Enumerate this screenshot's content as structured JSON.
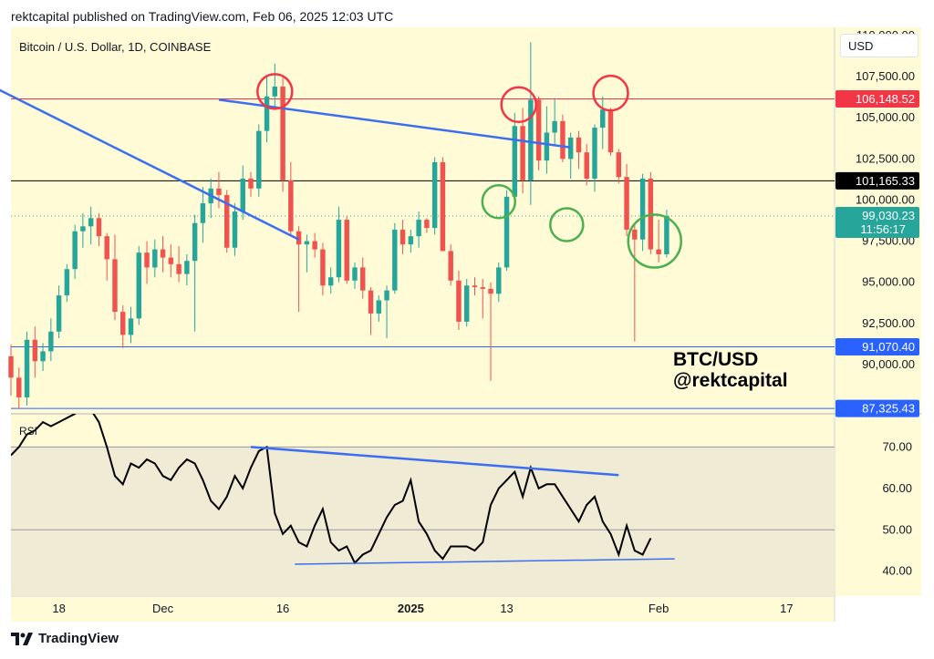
{
  "header": {
    "published_text": "rektcapital published on TradingView.com, Feb 06, 2025 12:03 UTC"
  },
  "footer": {
    "brand_label": "TradingView",
    "logo_icon": "tradingview-logo-icon"
  },
  "toolbar": {
    "currency_label": "USD"
  },
  "chart_data": [
    {
      "type": "candlestick",
      "title": "Bitcoin / U.S. Dollar, 1D, COINBASE",
      "watermark": [
        "BTC/USD",
        "@rektcapital"
      ],
      "ylim": [
        87000,
        110500
      ],
      "y_ticks": [
        "110,000.00",
        "107,500.00",
        "105,000.00",
        "102,500.00",
        "100,000.00",
        "97,500.00",
        "95,000.00",
        "92,500.00",
        "90,000.00"
      ],
      "x_ticks": [
        {
          "label": "18",
          "day": 6
        },
        {
          "label": "Dec",
          "day": 19
        },
        {
          "label": "16",
          "day": 34
        },
        {
          "label": "2025",
          "day": 50
        },
        {
          "label": "13",
          "day": 62
        },
        {
          "label": "Feb",
          "day": 81
        },
        {
          "label": "17",
          "day": 97
        }
      ],
      "x_range_days": [
        0,
        103
      ],
      "colors": {
        "up": "#26a69a",
        "down": "#ef5350",
        "trendline": "#3b6ff0",
        "resistance": "#f23645",
        "support": "#2962ff",
        "background": "#fffbd6"
      },
      "price_labels": [
        {
          "label": "106,148.52",
          "value": 106148.52,
          "color": "#f23645"
        },
        {
          "label": "101,165.33",
          "value": 101165.33,
          "color": "#000000"
        },
        {
          "label": "99,030.23",
          "value": 99030.23,
          "color": "#26a69a",
          "sub_label": "11:56:17"
        },
        {
          "label": "91,070.40",
          "value": 91070.4,
          "color": "#2962ff"
        },
        {
          "label": "87,325.43",
          "value": 87325.43,
          "color": "#2962ff"
        }
      ],
      "candles": [
        [
          90500,
          91200,
          88100,
          89200
        ],
        [
          89200,
          89800,
          87300,
          88000
        ],
        [
          88000,
          92000,
          87500,
          91500
        ],
        [
          91500,
          92300,
          89200,
          90200
        ],
        [
          90200,
          91300,
          89600,
          90800
        ],
        [
          90800,
          92800,
          90200,
          92000
        ],
        [
          92000,
          94800,
          91600,
          94200
        ],
        [
          94200,
          96100,
          93800,
          95800
        ],
        [
          95800,
          98500,
          95200,
          98100
        ],
        [
          98100,
          99200,
          97100,
          98400
        ],
        [
          98400,
          99600,
          97300,
          98900
        ],
        [
          98900,
          99200,
          97200,
          97800
        ],
        [
          97800,
          98000,
          95100,
          96400
        ],
        [
          96400,
          97900,
          92700,
          93200
        ],
        [
          93200,
          93600,
          91000,
          91800
        ],
        [
          91800,
          93500,
          91300,
          92800
        ],
        [
          92800,
          97200,
          92400,
          96800
        ],
        [
          96800,
          97500,
          94900,
          95900
        ],
        [
          95900,
          97600,
          95300,
          97000
        ],
        [
          97000,
          97800,
          95600,
          96500
        ],
        [
          96500,
          97300,
          95300,
          96100
        ],
        [
          96100,
          97200,
          95000,
          95500
        ],
        [
          95500,
          96700,
          94800,
          96300
        ],
        [
          96300,
          99100,
          92000,
          98600
        ],
        [
          98600,
          100800,
          97400,
          99800
        ],
        [
          99800,
          101300,
          98900,
          100700
        ],
        [
          100700,
          101700,
          99500,
          100300
        ],
        [
          100300,
          100600,
          96800,
          97100
        ],
        [
          97100,
          99800,
          96600,
          99300
        ],
        [
          99300,
          102100,
          98800,
          101300
        ],
        [
          101300,
          101700,
          100200,
          100700
        ],
        [
          100700,
          104600,
          100200,
          104200
        ],
        [
          104200,
          107600,
          103500,
          106300
        ],
        [
          106300,
          108300,
          105700,
          106900
        ],
        [
          106900,
          107600,
          100500,
          101200
        ],
        [
          101200,
          102300,
          97800,
          98100
        ],
        [
          98100,
          98400,
          93200,
          97300
        ],
        [
          97300,
          97900,
          95600,
          97500
        ],
        [
          97500,
          98000,
          96500,
          97000
        ],
        [
          97000,
          97400,
          94200,
          94800
        ],
        [
          94800,
          95900,
          94300,
          95300
        ],
        [
          95300,
          99600,
          95000,
          98800
        ],
        [
          98800,
          99000,
          94900,
          95100
        ],
        [
          95100,
          96200,
          94600,
          95900
        ],
        [
          95900,
          96500,
          94000,
          94500
        ],
        [
          94500,
          94700,
          91800,
          93100
        ],
        [
          93100,
          94200,
          92600,
          93900
        ],
        [
          93900,
          94800,
          91600,
          94500
        ],
        [
          94500,
          98600,
          94300,
          98200
        ],
        [
          98200,
          98800,
          96700,
          97300
        ],
        [
          97300,
          98200,
          96800,
          97800
        ],
        [
          97800,
          99300,
          97100,
          98800
        ],
        [
          98800,
          98900,
          98000,
          98300
        ],
        [
          98300,
          102600,
          97900,
          102300
        ],
        [
          102300,
          102600,
          96900,
          96900
        ],
        [
          96900,
          97300,
          94800,
          95100
        ],
        [
          95100,
          95700,
          92100,
          92600
        ],
        [
          92600,
          95200,
          92300,
          94800
        ],
        [
          94800,
          95300,
          94200,
          94700
        ],
        [
          94700,
          95200,
          92800,
          94600
        ],
        [
          94600,
          95000,
          89000,
          94300
        ],
        [
          94300,
          96200,
          93800,
          95900
        ],
        [
          95900,
          100600,
          95700,
          100200
        ],
        [
          100200,
          105300,
          99900,
          104500
        ],
        [
          104500,
          105600,
          100400,
          101200
        ],
        [
          101200,
          109600,
          99700,
          106100
        ],
        [
          106100,
          106300,
          101800,
          102400
        ],
        [
          102400,
          105700,
          101600,
          104100
        ],
        [
          104100,
          106200,
          103300,
          104800
        ],
        [
          104800,
          105200,
          102300,
          102500
        ],
        [
          102500,
          104100,
          101300,
          103800
        ],
        [
          103800,
          104200,
          101900,
          102900
        ],
        [
          102900,
          103400,
          100900,
          101300
        ],
        [
          101300,
          104600,
          100500,
          104400
        ],
        [
          104400,
          106300,
          103100,
          105500
        ],
        [
          105500,
          105600,
          102700,
          102900
        ],
        [
          102900,
          103100,
          101000,
          101400
        ],
        [
          101400,
          102200,
          97800,
          98200
        ],
        [
          98200,
          98500,
          91400,
          97600
        ],
        [
          97600,
          101600,
          96900,
          101300
        ],
        [
          101300,
          101700,
          96700,
          97000
        ],
        [
          97000,
          98800,
          96200,
          96700
        ],
        [
          96700,
          99400,
          96500,
          99030
        ]
      ],
      "trendlines": [
        {
          "from": [
            -6,
            107800
          ],
          "to": [
            36,
            97600
          ],
          "color": "#3b6ff0"
        },
        {
          "from": [
            26,
            106100
          ],
          "to": [
            70,
            103200
          ],
          "color": "#3b6ff0"
        }
      ],
      "circles": [
        {
          "day": 33,
          "price": 106600,
          "color": "#f23645"
        },
        {
          "day": 63.5,
          "price": 105800,
          "color": "#f23645"
        },
        {
          "day": 75,
          "price": 106500,
          "color": "#f23645"
        },
        {
          "day": 61,
          "price": 99900,
          "color": "#4caf50"
        },
        {
          "day": 69.5,
          "price": 98500,
          "color": "#4caf50"
        },
        {
          "day": 80.5,
          "price": 97500,
          "color": "#4caf50"
        }
      ]
    },
    {
      "type": "line",
      "title": "RSI",
      "ylim": [
        34,
        78
      ],
      "y_ticks": [
        "70.00",
        "60.00",
        "50.00",
        "40.00"
      ],
      "band": [
        30,
        70
      ],
      "band_color": "#f0ebd5",
      "series": [
        {
          "values": [
            68,
            70,
            73,
            74,
            76,
            75,
            76,
            77,
            78,
            80,
            79,
            76,
            70,
            63,
            61,
            66,
            65,
            67,
            66,
            63,
            62,
            65,
            67,
            66,
            62,
            57,
            55,
            58,
            63,
            60,
            65,
            69,
            70,
            54,
            49,
            51,
            47,
            46,
            51,
            55,
            47,
            45,
            46,
            42,
            44,
            45,
            49,
            53,
            56,
            57,
            62,
            52,
            49,
            45,
            43,
            46,
            46,
            46,
            45,
            47,
            56,
            60,
            62,
            64,
            58,
            65,
            60,
            61,
            61,
            58,
            55,
            52,
            56,
            58,
            52,
            49,
            44,
            51,
            45,
            44,
            48
          ]
        }
      ],
      "trendlines": [
        {
          "from": [
            30,
            70
          ],
          "to": [
            76,
            63.2
          ]
        },
        {
          "from": [
            35.5,
            41.7
          ],
          "to": [
            83,
            43
          ]
        }
      ]
    }
  ]
}
